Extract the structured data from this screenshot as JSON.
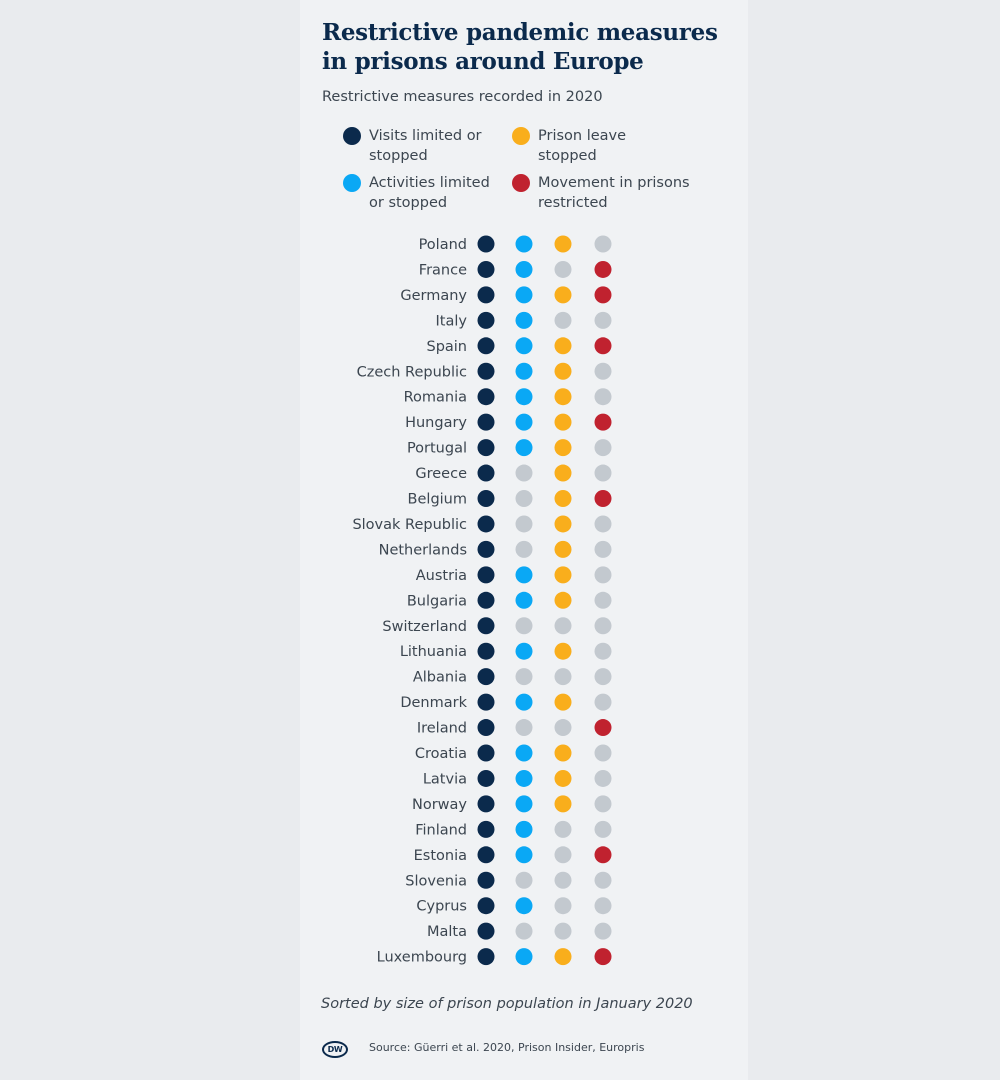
{
  "title": "Restrictive pandemic measures\nin prisons around Europe",
  "subtitle": "Restrictive measures recorded in 2020",
  "legend": [
    {
      "label": "Visits limited or\nstopped",
      "color": "#0b2a4c"
    },
    {
      "label": "Prison leave\nstopped",
      "color": "#f9ae1c"
    },
    {
      "label": "Activities limited\nor stopped",
      "color": "#0aa8f5"
    },
    {
      "label": "Movement in prisons\nrestricted",
      "color": "#c0222f"
    }
  ],
  "inactive_color": "#c3c9cf",
  "chart_data": {
    "type": "table",
    "columns": [
      "Visits limited or stopped",
      "Activities limited or stopped",
      "Prison leave stopped",
      "Movement in prisons restricted"
    ],
    "rows": [
      {
        "country": "Poland",
        "values": [
          1,
          1,
          1,
          0
        ]
      },
      {
        "country": "France",
        "values": [
          1,
          1,
          0,
          1
        ]
      },
      {
        "country": "Germany",
        "values": [
          1,
          1,
          1,
          1
        ]
      },
      {
        "country": "Italy",
        "values": [
          1,
          1,
          0,
          0
        ]
      },
      {
        "country": "Spain",
        "values": [
          1,
          1,
          1,
          1
        ]
      },
      {
        "country": "Czech Republic",
        "values": [
          1,
          1,
          1,
          0
        ]
      },
      {
        "country": "Romania",
        "values": [
          1,
          1,
          1,
          0
        ]
      },
      {
        "country": "Hungary",
        "values": [
          1,
          1,
          1,
          1
        ]
      },
      {
        "country": "Portugal",
        "values": [
          1,
          1,
          1,
          0
        ]
      },
      {
        "country": "Greece",
        "values": [
          1,
          0,
          1,
          0
        ]
      },
      {
        "country": "Belgium",
        "values": [
          1,
          0,
          1,
          1
        ]
      },
      {
        "country": "Slovak Republic",
        "values": [
          1,
          0,
          1,
          0
        ]
      },
      {
        "country": "Netherlands",
        "values": [
          1,
          0,
          1,
          0
        ]
      },
      {
        "country": "Austria",
        "values": [
          1,
          1,
          1,
          0
        ]
      },
      {
        "country": "Bulgaria",
        "values": [
          1,
          1,
          1,
          0
        ]
      },
      {
        "country": "Switzerland",
        "values": [
          1,
          0,
          0,
          0
        ]
      },
      {
        "country": "Lithuania",
        "values": [
          1,
          1,
          1,
          0
        ]
      },
      {
        "country": "Albania",
        "values": [
          1,
          0,
          0,
          0
        ]
      },
      {
        "country": "Denmark",
        "values": [
          1,
          1,
          1,
          0
        ]
      },
      {
        "country": "Ireland",
        "values": [
          1,
          0,
          0,
          1
        ]
      },
      {
        "country": "Croatia",
        "values": [
          1,
          1,
          1,
          0
        ]
      },
      {
        "country": "Latvia",
        "values": [
          1,
          1,
          1,
          0
        ]
      },
      {
        "country": "Norway",
        "values": [
          1,
          1,
          1,
          0
        ]
      },
      {
        "country": "Finland",
        "values": [
          1,
          1,
          0,
          0
        ]
      },
      {
        "country": "Estonia",
        "values": [
          1,
          1,
          0,
          1
        ]
      },
      {
        "country": "Slovenia",
        "values": [
          1,
          0,
          0,
          0
        ]
      },
      {
        "country": "Cyprus",
        "values": [
          1,
          1,
          0,
          0
        ]
      },
      {
        "country": "Malta",
        "values": [
          1,
          0,
          0,
          0
        ]
      },
      {
        "country": "Luxembourg",
        "values": [
          1,
          1,
          1,
          1
        ]
      }
    ],
    "column_colors": [
      "#0b2a4c",
      "#0aa8f5",
      "#f9ae1c",
      "#c0222f"
    ]
  },
  "note": "Sorted by size of prison population in January 2020",
  "logo_text": "DW",
  "source": "Source: Güerri et al. 2020, Prison Insider, Europris"
}
